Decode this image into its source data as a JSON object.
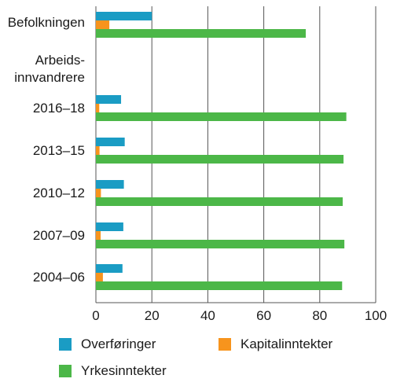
{
  "chart_data": {
    "type": "bar",
    "orientation": "horizontal",
    "categories": [
      "Befolkningen",
      "Arbeids-\ninnvandrere",
      "2016–18",
      "2013–15",
      "2010–12",
      "2007–09",
      "2004–06"
    ],
    "series": [
      {
        "name": "Overføringer",
        "color": "#1a9cc4",
        "values": [
          20,
          null,
          9,
          10.3,
          10,
          9.8,
          9.5
        ]
      },
      {
        "name": "Kapitalinntekter",
        "color": "#f7941d",
        "values": [
          4.8,
          null,
          1.2,
          1.3,
          1.8,
          1.7,
          2.5
        ]
      },
      {
        "name": "Yrkesinntekter",
        "color": "#4cb748",
        "values": [
          75,
          null,
          89.5,
          88.5,
          88.2,
          88.8,
          88
        ]
      }
    ],
    "xlim": [
      0,
      100
    ],
    "xticks": [
      0,
      20,
      40,
      60,
      80,
      100
    ],
    "grid": true,
    "legend_position": "bottom"
  }
}
